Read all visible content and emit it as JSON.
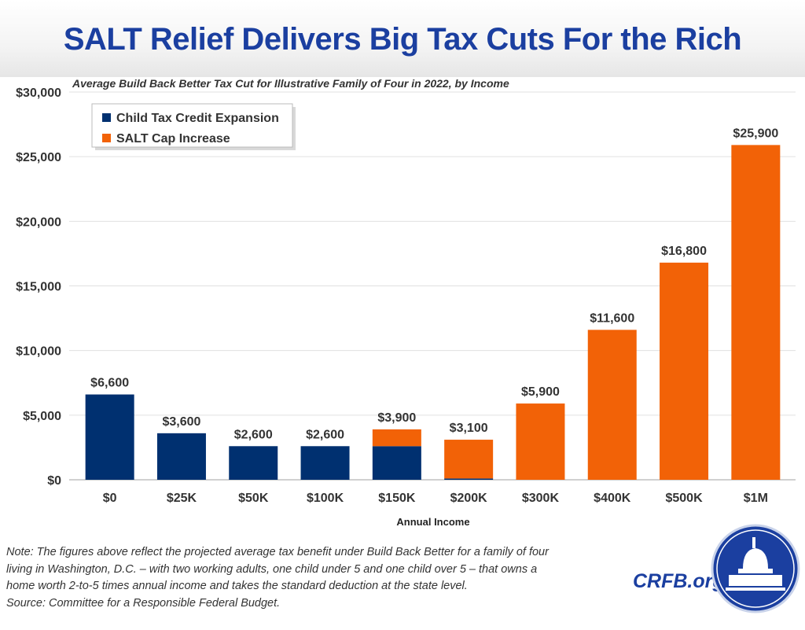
{
  "header": {
    "title": "SALT Relief Delivers Big Tax Cuts For the Rich"
  },
  "chart_data": {
    "type": "bar",
    "stacked": true,
    "title": "SALT Relief Delivers Big Tax Cuts For the Rich",
    "subtitle": "Average Build Back Better Tax Cut for Illustrative Family of Four in 2022, by Income",
    "xlabel": "Annual Income",
    "ylabel": "",
    "categories": [
      "$0",
      "$25K",
      "$50K",
      "$100K",
      "$150K",
      "$200K",
      "$300K",
      "$400K",
      "$500K",
      "$1M"
    ],
    "series": [
      {
        "name": "Child Tax Credit Expansion",
        "color": "#003070",
        "values": [
          6600,
          3600,
          2600,
          2600,
          2600,
          100,
          0,
          0,
          0,
          0
        ]
      },
      {
        "name": "SALT Cap Increase",
        "color": "#f26207",
        "values": [
          0,
          0,
          0,
          0,
          1300,
          3000,
          5900,
          11600,
          16800,
          25900
        ]
      }
    ],
    "totals": [
      "$6,600",
      "$3,600",
      "$2,600",
      "$2,600",
      "$3,900",
      "$3,100",
      "$5,900",
      "$11,600",
      "$16,800",
      "$25,900"
    ],
    "ylim": [
      0,
      30000
    ],
    "yticks": [
      "$0",
      "$5,000",
      "$10,000",
      "$15,000",
      "$20,000",
      "$25,000",
      "$30,000"
    ],
    "grid": true,
    "legend": "top-left"
  },
  "footer": {
    "note_lines": [
      "Note: The figures above reflect the projected average tax benefit under Build Back Better for a family of four",
      "living in Washington, D.C. – with two working adults, one child under 5 and one child over 5 – that owns a",
      "home worth 2-to-5 times annual income and takes the standard deduction at the state level.",
      "Source: Committee for a Responsible Federal Budget."
    ],
    "brand": "CRFB.org"
  }
}
